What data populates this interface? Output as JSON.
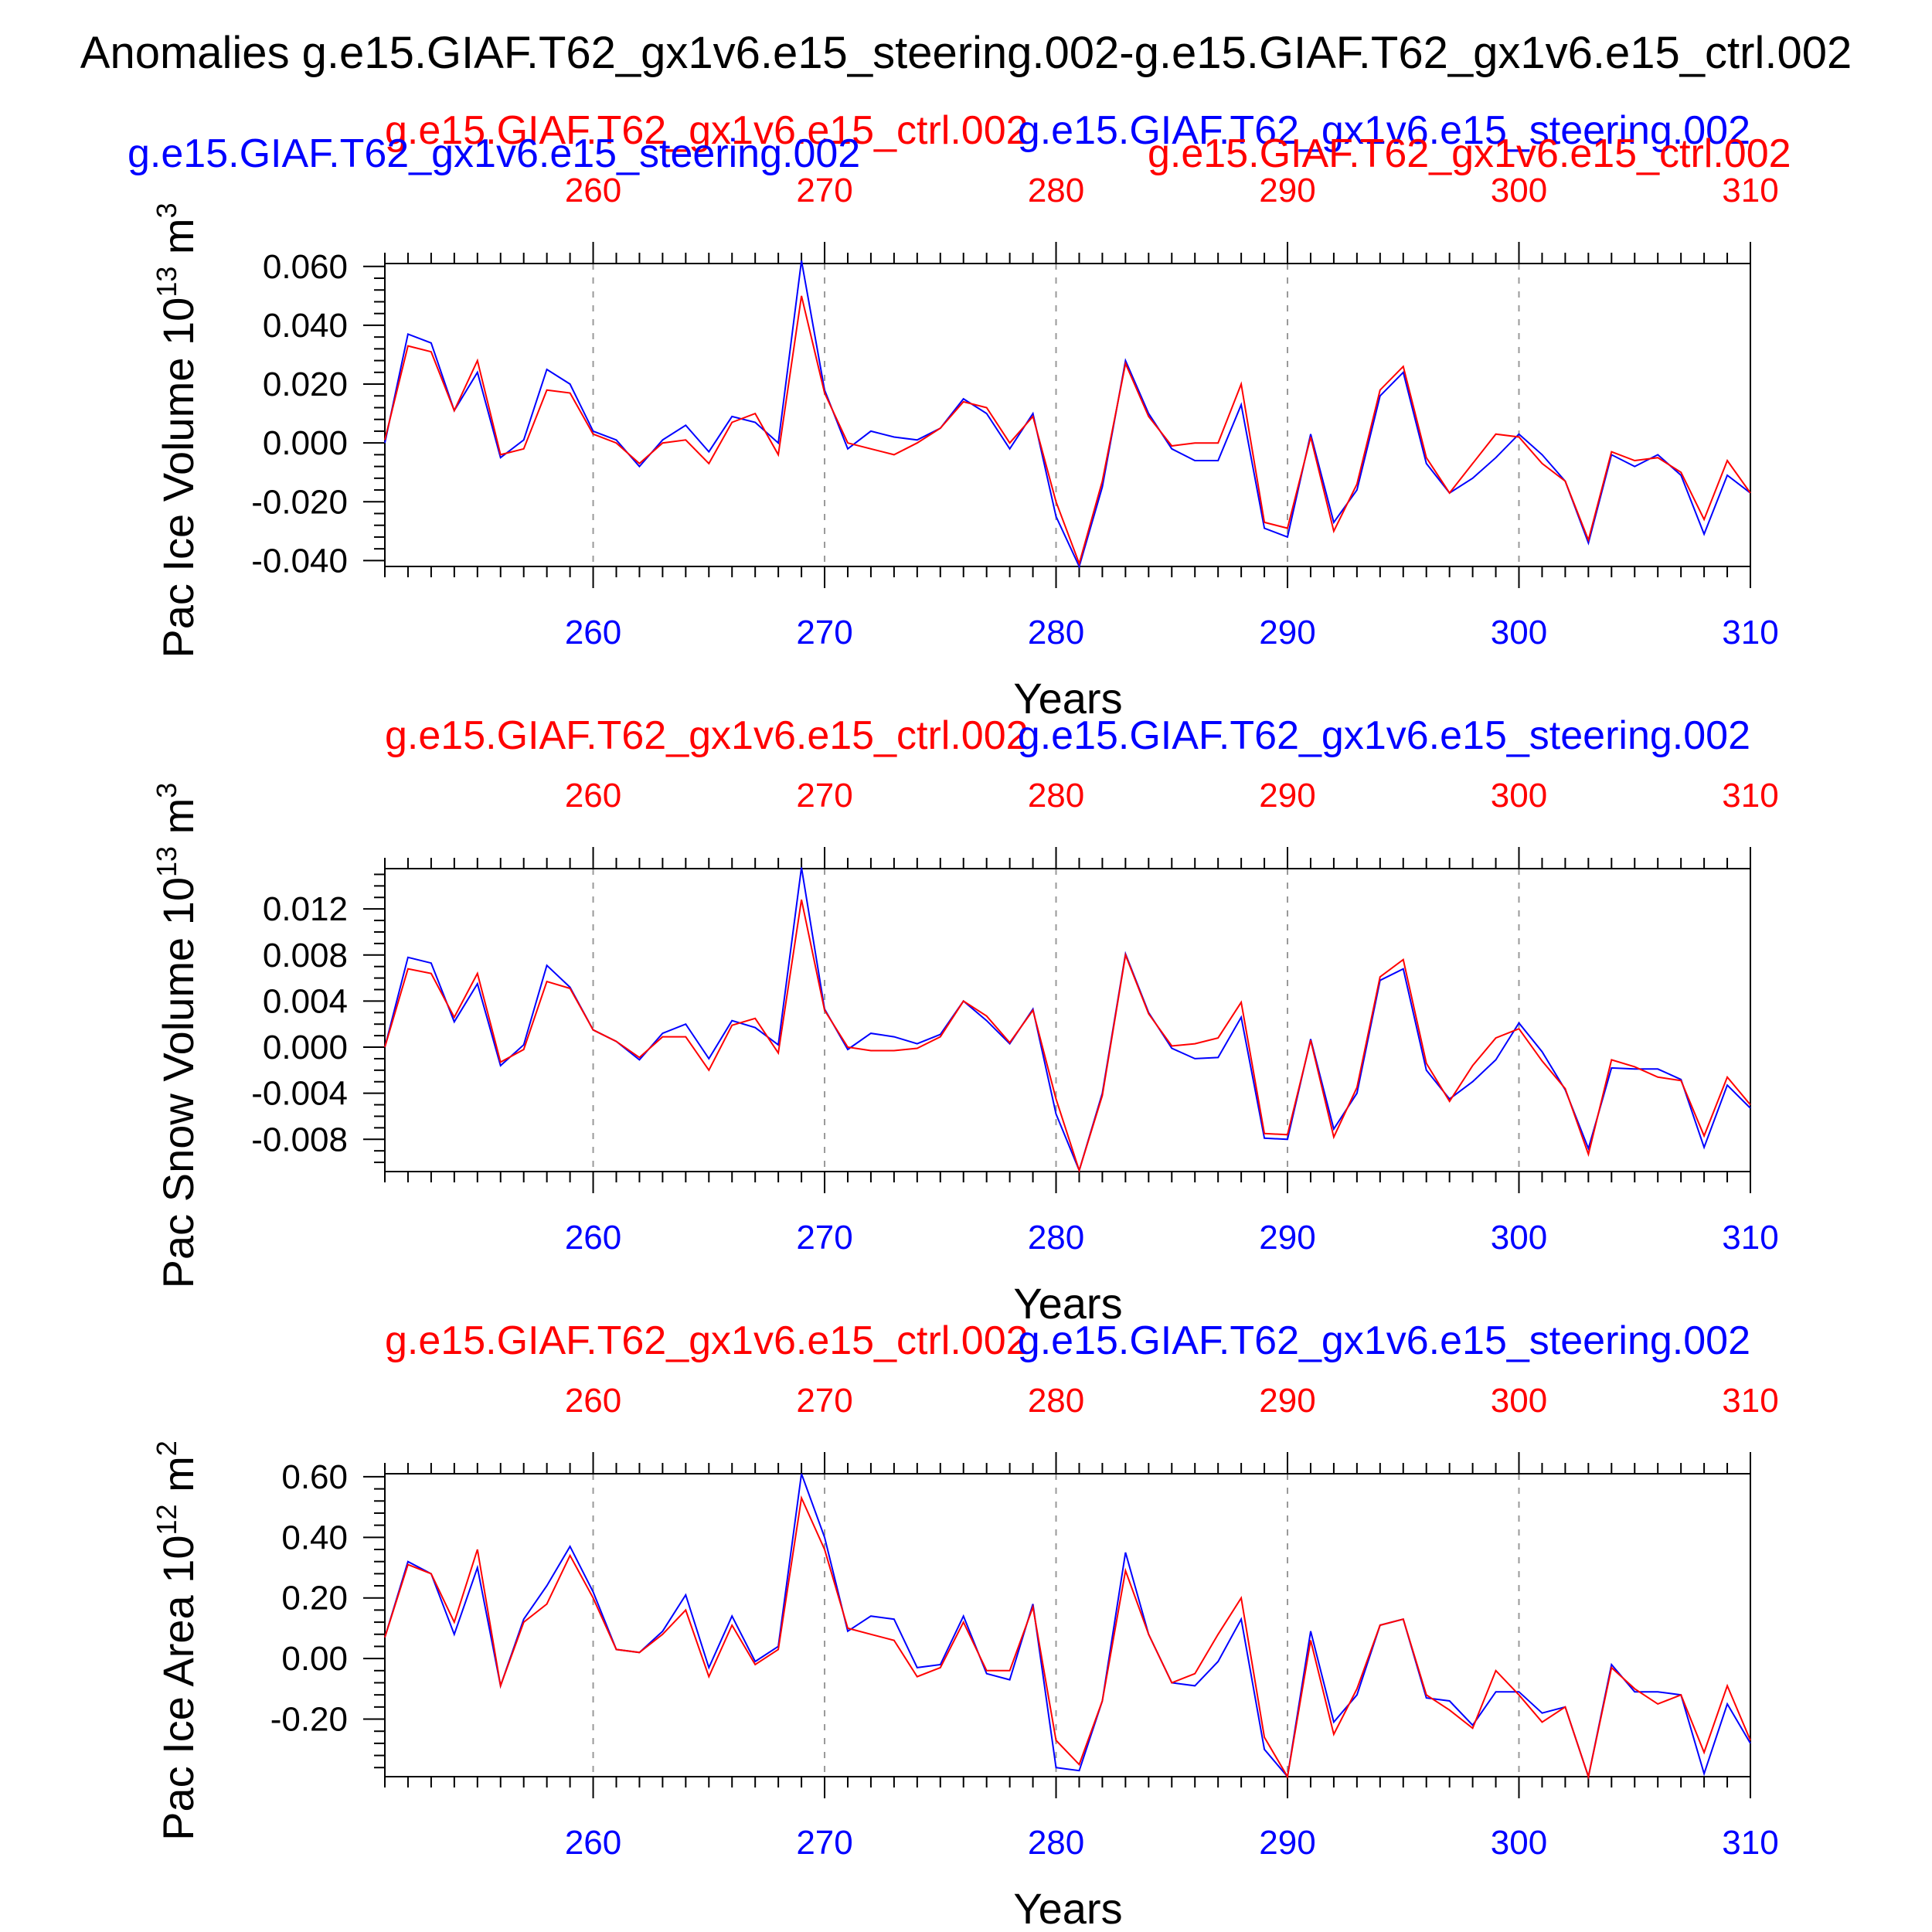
{
  "title": "Anomalies g.e15.GIAF.T62_gx1v6.e15_steering.002-g.e15.GIAF.T62_gx1v6.e15_ctrl.002",
  "colors": {
    "ctrl": "#ff0000",
    "steering": "#0000ff",
    "axis": "#000000",
    "grid": "#999999"
  },
  "chart_data": [
    {
      "type": "line",
      "ctrl_run_label": "g.e15.GIAF.T62_gx1v6.e15_ctrl.002",
      "steering_run_label": "g.e15.GIAF.T62_gx1v6.e15_steering.002",
      "extra_labels": [
        {
          "text": "g.e15.GIAF.T62_gx1v6.e15_steering.002",
          "color": "#0000ff"
        },
        {
          "text": "g.e15.GIAF.T62_gx1v6.e15_ctrl.002",
          "color": "#ff0000"
        }
      ],
      "ylabel": "Pac Ice Volume 10",
      "yexp": "13",
      "yunit": "m",
      "yunit_exp": "3",
      "xlabel": "Years",
      "xlim": [
        251,
        310
      ],
      "ylim": [
        -0.042,
        0.061
      ],
      "yticks": [
        -0.04,
        -0.02,
        0.0,
        0.02,
        0.04,
        0.06
      ],
      "ytick_labels": [
        "-0.040",
        "-0.020",
        "0.000",
        "0.020",
        "0.040",
        "0.060"
      ],
      "yminor": 0.004,
      "xticks": [
        260,
        270,
        280,
        290,
        300,
        310
      ],
      "xtick_labels": [
        "260",
        "270",
        "280",
        "290",
        "300",
        "310"
      ],
      "series": [
        {
          "name": "g.e15.GIAF.T62_gx1v6.e15_steering.002",
          "color": "#0000ff",
          "x0": 251,
          "values": [
            0.0,
            0.037,
            0.034,
            0.011,
            0.024,
            -0.005,
            0.001,
            0.025,
            0.02,
            0.004,
            0.001,
            -0.008,
            0.001,
            0.006,
            -0.003,
            0.009,
            0.007,
            0.0,
            0.062,
            0.018,
            -0.002,
            0.004,
            0.002,
            0.001,
            0.005,
            0.015,
            0.01,
            -0.002,
            0.01,
            -0.025,
            -0.042,
            -0.015,
            0.028,
            0.01,
            -0.002,
            -0.006,
            -0.006,
            0.013,
            -0.029,
            -0.032,
            0.003,
            -0.027,
            -0.016,
            0.016,
            0.024,
            -0.007,
            -0.017,
            -0.012,
            -0.005,
            0.003,
            -0.004,
            -0.013,
            -0.034,
            -0.004,
            -0.008,
            -0.004,
            -0.011,
            -0.031,
            -0.011,
            -0.017
          ]
        },
        {
          "name": "g.e15.GIAF.T62_gx1v6.e15_ctrl.002",
          "color": "#ff0000",
          "x0": 251,
          "values": [
            0.001,
            0.033,
            0.031,
            0.011,
            0.028,
            -0.004,
            -0.002,
            0.018,
            0.017,
            0.003,
            0.0,
            -0.007,
            0.0,
            0.001,
            -0.007,
            0.007,
            0.01,
            -0.004,
            0.05,
            0.017,
            0.0,
            -0.002,
            -0.004,
            0.0,
            0.005,
            0.014,
            0.012,
            0.0,
            0.009,
            -0.02,
            -0.041,
            -0.013,
            0.027,
            0.009,
            -0.001,
            0.0,
            0.0,
            0.02,
            -0.027,
            -0.029,
            0.002,
            -0.03,
            -0.014,
            0.018,
            0.026,
            -0.005,
            -0.017,
            -0.007,
            0.003,
            0.002,
            -0.007,
            -0.013,
            -0.033,
            -0.003,
            -0.006,
            -0.005,
            -0.01,
            -0.026,
            -0.006,
            -0.017
          ]
        }
      ]
    },
    {
      "type": "line",
      "ctrl_run_label": "g.e15.GIAF.T62_gx1v6.e15_ctrl.002",
      "steering_run_label": "g.e15.GIAF.T62_gx1v6.e15_steering.002",
      "ylabel": "Pac Snow Volume 10",
      "yexp": "13",
      "yunit": "m",
      "yunit_exp": "3",
      "xlabel": "Years",
      "xlim": [
        251,
        310
      ],
      "ylim": [
        -0.0108,
        0.0155
      ],
      "yticks": [
        -0.008,
        -0.004,
        0.0,
        0.004,
        0.008,
        0.012
      ],
      "ytick_labels": [
        "-0.008",
        "-0.004",
        "0.000",
        "0.004",
        "0.008",
        "0.012"
      ],
      "yminor": 0.001,
      "xticks": [
        260,
        270,
        280,
        290,
        300,
        310
      ],
      "xtick_labels": [
        "260",
        "270",
        "280",
        "290",
        "300",
        "310"
      ],
      "series": [
        {
          "name": "g.e15.GIAF.T62_gx1v6.e15_steering.002",
          "color": "#0000ff",
          "x0": 251,
          "values": [
            0.0,
            0.0078,
            0.0073,
            0.0022,
            0.0055,
            -0.0016,
            0.0002,
            0.0071,
            0.0052,
            0.0015,
            0.0005,
            -0.0011,
            0.0012,
            0.002,
            -0.001,
            0.0023,
            0.0017,
            0.0002,
            0.0156,
            0.0033,
            -0.0002,
            0.0012,
            0.0009,
            0.0003,
            0.0011,
            0.004,
            0.0023,
            0.0003,
            0.0033,
            -0.0058,
            -0.0107,
            -0.004,
            0.0081,
            0.003,
            -0.0001,
            -0.001,
            -0.0009,
            0.0026,
            -0.0079,
            -0.008,
            0.0007,
            -0.0071,
            -0.004,
            0.0058,
            0.0068,
            -0.002,
            -0.0045,
            -0.003,
            -0.0011,
            0.0021,
            -0.0004,
            -0.0037,
            -0.0088,
            -0.0018,
            -0.0019,
            -0.0019,
            -0.0028,
            -0.0087,
            -0.0033,
            -0.0053
          ]
        },
        {
          "name": "g.e15.GIAF.T62_gx1v6.e15_ctrl.002",
          "color": "#ff0000",
          "x0": 251,
          "values": [
            0.0,
            0.0068,
            0.0064,
            0.0026,
            0.0064,
            -0.0013,
            -0.0002,
            0.0057,
            0.0051,
            0.0015,
            0.0005,
            -0.0009,
            0.0009,
            0.0009,
            -0.002,
            0.0019,
            0.0025,
            -0.0005,
            0.0128,
            0.0032,
            0.0,
            -0.0003,
            -0.0003,
            -0.0001,
            0.0009,
            0.004,
            0.0027,
            0.0004,
            0.0032,
            -0.0045,
            -0.0107,
            -0.0042,
            0.008,
            0.0029,
            0.0001,
            0.0003,
            0.0008,
            0.0039,
            -0.0075,
            -0.0076,
            0.0006,
            -0.0078,
            -0.0035,
            0.0061,
            0.0076,
            -0.0014,
            -0.0047,
            -0.0016,
            0.0008,
            0.0016,
            -0.0012,
            -0.0036,
            -0.0093,
            -0.0011,
            -0.0017,
            -0.0026,
            -0.0029,
            -0.0077,
            -0.0026,
            -0.005
          ]
        }
      ]
    },
    {
      "type": "line",
      "ctrl_run_label": "g.e15.GIAF.T62_gx1v6.e15_ctrl.002",
      "steering_run_label": "g.e15.GIAF.T62_gx1v6.e15_steering.002",
      "ylabel": "Pac Ice Area 10",
      "yexp": "12",
      "yunit": "m",
      "yunit_exp": "2",
      "xlabel": "Years",
      "xlim": [
        251,
        310
      ],
      "ylim": [
        -0.39,
        0.61
      ],
      "yticks": [
        -0.2,
        0.0,
        0.2,
        0.4,
        0.6
      ],
      "ytick_labels": [
        "-0.20",
        "0.00",
        "0.20",
        "0.40",
        "0.60"
      ],
      "yminor": 0.04,
      "xticks": [
        260,
        270,
        280,
        290,
        300,
        310
      ],
      "xtick_labels": [
        "260",
        "270",
        "280",
        "290",
        "300",
        "310"
      ],
      "series": [
        {
          "name": "g.e15.GIAF.T62_gx1v6.e15_steering.002",
          "color": "#0000ff",
          "x0": 251,
          "values": [
            0.07,
            0.32,
            0.28,
            0.08,
            0.3,
            -0.09,
            0.13,
            0.24,
            0.37,
            0.22,
            0.03,
            0.02,
            0.09,
            0.21,
            -0.03,
            0.14,
            -0.01,
            0.04,
            0.61,
            0.4,
            0.09,
            0.14,
            0.13,
            -0.03,
            -0.02,
            0.14,
            -0.05,
            -0.07,
            0.18,
            -0.36,
            -0.37,
            -0.14,
            0.35,
            0.08,
            -0.08,
            -0.09,
            -0.01,
            0.13,
            -0.3,
            -0.39,
            0.09,
            -0.21,
            -0.12,
            0.11,
            0.13,
            -0.13,
            -0.14,
            -0.22,
            -0.11,
            -0.11,
            -0.18,
            -0.16,
            -0.39,
            -0.02,
            -0.11,
            -0.11,
            -0.12,
            -0.38,
            -0.15,
            -0.28
          ]
        },
        {
          "name": "g.e15.GIAF.T62_gx1v6.e15_ctrl.002",
          "color": "#ff0000",
          "x0": 251,
          "values": [
            0.07,
            0.31,
            0.28,
            0.12,
            0.36,
            -0.09,
            0.12,
            0.18,
            0.34,
            0.2,
            0.03,
            0.02,
            0.08,
            0.16,
            -0.06,
            0.11,
            -0.02,
            0.03,
            0.53,
            0.36,
            0.1,
            0.08,
            0.06,
            -0.06,
            -0.03,
            0.12,
            -0.04,
            -0.04,
            0.17,
            -0.27,
            -0.35,
            -0.14,
            0.29,
            0.08,
            -0.08,
            -0.05,
            0.08,
            0.2,
            -0.26,
            -0.39,
            0.06,
            -0.25,
            -0.1,
            0.11,
            0.13,
            -0.12,
            -0.17,
            -0.23,
            -0.04,
            -0.12,
            -0.21,
            -0.16,
            -0.39,
            -0.03,
            -0.1,
            -0.15,
            -0.12,
            -0.31,
            -0.09,
            -0.27
          ]
        }
      ]
    }
  ]
}
